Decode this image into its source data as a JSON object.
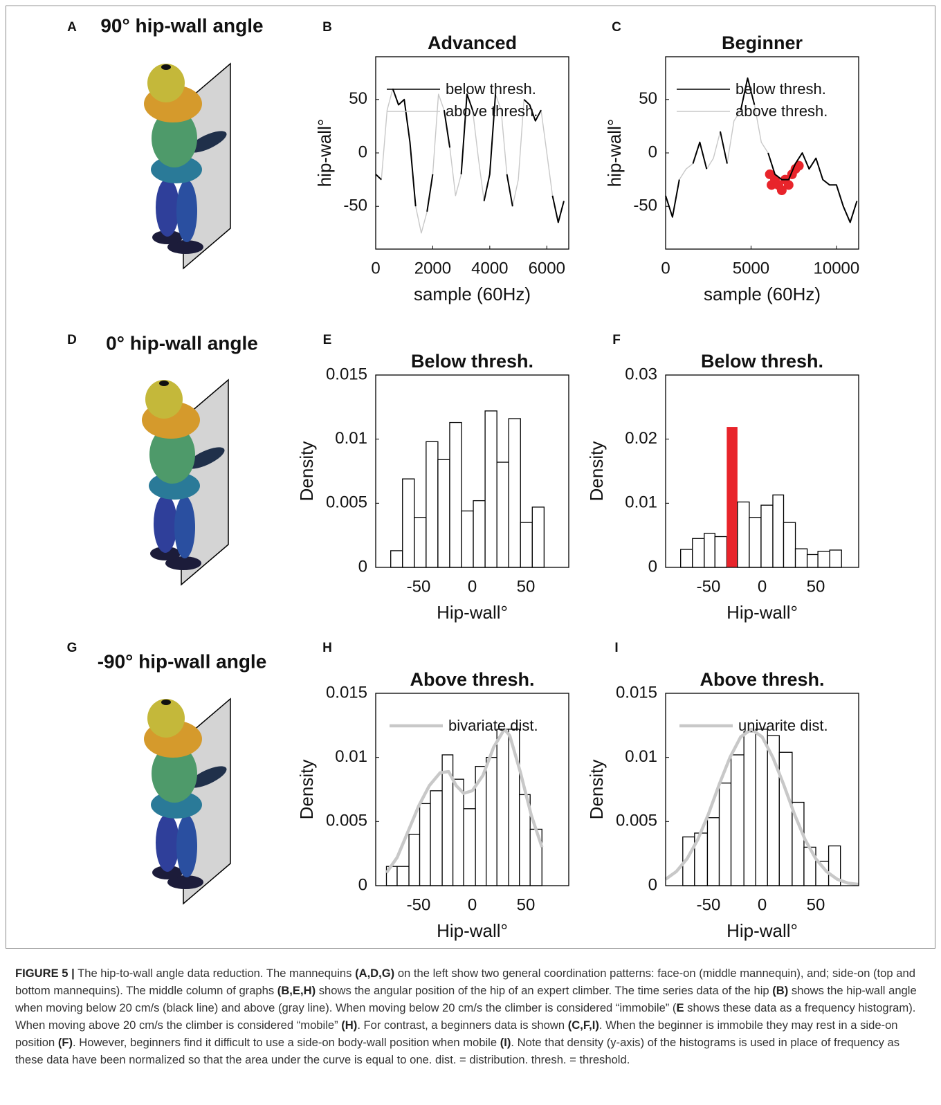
{
  "panel_labels": [
    "A",
    "B",
    "C",
    "D",
    "E",
    "F",
    "G",
    "H",
    "I"
  ],
  "mannequin_titles": [
    "90° hip-wall angle",
    "0° hip-wall angle",
    "-90° hip-wall angle"
  ],
  "chart_data": [
    {
      "type": "line",
      "title": "Advanced",
      "xlabel": "sample (60Hz)",
      "ylabel": "hip-wall°",
      "xlim": [
        0,
        6770
      ],
      "ylim": [
        -90,
        90
      ],
      "xticks": [
        0,
        2000,
        4000,
        6000
      ],
      "yticks": [
        -50,
        0,
        50
      ],
      "legend": "upper left",
      "series": [
        {
          "name": "below thresh.",
          "color": "#000000",
          "x": [
            0,
            200,
            400,
            600,
            800,
            1000,
            1200,
            1400,
            1600,
            1800,
            2000,
            2200,
            2400,
            2600,
            2800,
            3000,
            3200,
            3400,
            3600,
            3800,
            4000,
            4200,
            4400,
            4600,
            4800,
            5000,
            5200,
            5400,
            5600,
            5800,
            6000,
            6200,
            6400,
            6600
          ],
          "values": [
            -20,
            -25,
            null,
            60,
            45,
            50,
            10,
            -50,
            null,
            -55,
            -20,
            null,
            40,
            5,
            null,
            -20,
            55,
            40,
            null,
            -45,
            -20,
            55,
            null,
            -20,
            -50,
            null,
            50,
            45,
            30,
            40,
            null,
            -40,
            -65,
            -45
          ]
        },
        {
          "name": "above thresh.",
          "color": "#c8c8c8",
          "x": [
            0,
            200,
            400,
            600,
            800,
            1000,
            1200,
            1400,
            1600,
            1800,
            2000,
            2200,
            2400,
            2600,
            2800,
            3000,
            3200,
            3400,
            3600,
            3800,
            4000,
            4200,
            4400,
            4600,
            4800,
            5000,
            5200,
            5400,
            5600,
            5800,
            6000,
            6200,
            6400,
            6600
          ],
          "values": [
            -20,
            -25,
            40,
            60,
            45,
            50,
            10,
            -50,
            -75,
            -55,
            -20,
            55,
            40,
            5,
            -40,
            -20,
            55,
            40,
            -5,
            -45,
            -20,
            55,
            40,
            -20,
            -50,
            -25,
            50,
            45,
            30,
            40,
            0,
            -40,
            -65,
            -45
          ]
        }
      ]
    },
    {
      "type": "line",
      "title": "Beginner",
      "xlabel": "sample (60Hz)",
      "ylabel": "hip-wall°",
      "xlim": [
        0,
        11300
      ],
      "ylim": [
        -90,
        90
      ],
      "xticks": [
        0,
        5000,
        10000
      ],
      "yticks": [
        -50,
        0,
        50
      ],
      "legend": "upper left",
      "series": [
        {
          "name": "below thresh.",
          "color": "#000000",
          "x": [
            0,
            400,
            800,
            1200,
            1600,
            2000,
            2400,
            2800,
            3200,
            3600,
            4000,
            4400,
            4800,
            5200,
            5600,
            6000,
            6400,
            6800,
            7200,
            7600,
            8000,
            8400,
            8800,
            9200,
            9600,
            10000,
            10400,
            10800,
            11200
          ],
          "values": [
            -40,
            -60,
            -25,
            null,
            -10,
            10,
            -15,
            null,
            20,
            -10,
            null,
            40,
            70,
            45,
            null,
            0,
            -20,
            -25,
            -25,
            -10,
            0,
            -15,
            -5,
            -25,
            -30,
            -30,
            -50,
            -65,
            -45
          ]
        },
        {
          "name": "above thresh.",
          "color": "#c8c8c8",
          "x": [
            0,
            400,
            800,
            1200,
            1600,
            2000,
            2400,
            2800,
            3200,
            3600,
            4000,
            4400,
            4800,
            5200,
            5600,
            6000,
            6400,
            6800,
            7200,
            7600,
            8000,
            8400,
            8800,
            9200,
            9600,
            10000,
            10400,
            10800,
            11200
          ],
          "values": [
            -40,
            -60,
            -25,
            -15,
            -10,
            10,
            -15,
            -5,
            20,
            -10,
            30,
            40,
            70,
            45,
            10,
            0,
            -20,
            -25,
            -25,
            -10,
            0,
            -15,
            -5,
            -25,
            -30,
            -30,
            -50,
            -65,
            -45
          ]
        },
        {
          "type": "scatter",
          "color": "#e8242b",
          "x": [
            6100,
            6200,
            6400,
            6600,
            6800,
            7000,
            7200,
            7400,
            7600,
            7800
          ],
          "values": [
            -20,
            -30,
            -25,
            -30,
            -35,
            -25,
            -30,
            -20,
            -15,
            -12
          ]
        }
      ]
    },
    {
      "type": "histogram",
      "title": "Below thresh.",
      "xlabel": "Hip-wall°",
      "ylabel": "Density",
      "xlim": [
        -90,
        90
      ],
      "ylim": [
        0,
        0.015
      ],
      "xticks": [
        -50,
        0,
        50
      ],
      "yticks": [
        0,
        0.005,
        0.01,
        0.015
      ],
      "color": "#ffffff",
      "bins": [
        -76,
        -65,
        -54,
        -43,
        -32,
        -21,
        -10,
        1,
        12,
        23,
        34,
        45,
        56,
        67
      ],
      "values": [
        0.0013,
        0.0069,
        0.0039,
        0.0098,
        0.0084,
        0.0113,
        0.0044,
        0.0052,
        0.0122,
        0.0082,
        0.0116,
        0.0035,
        0.0047
      ]
    },
    {
      "type": "histogram",
      "title": "Below thresh.",
      "xlabel": "Hip-wall°",
      "ylabel": "Density",
      "xlim": [
        -90,
        90
      ],
      "ylim": [
        0,
        0.03
      ],
      "xticks": [
        -50,
        0,
        50
      ],
      "yticks": [
        0,
        0.01,
        0.02,
        0.03
      ],
      "bar_colors": [
        "#ffffff",
        "#ffffff",
        "#ffffff",
        "#ffffff",
        "#e8242b",
        "#ffffff",
        "#ffffff",
        "#ffffff",
        "#ffffff",
        "#ffffff",
        "#ffffff",
        "#ffffff",
        "#ffffff",
        "#ffffff"
      ],
      "bins": [
        -76,
        -65,
        -54,
        -44,
        -33,
        -23,
        -12,
        -1,
        10,
        20,
        31,
        42,
        52,
        63,
        74
      ],
      "values": [
        0.0028,
        0.0045,
        0.0053,
        0.0048,
        0.0219,
        0.0102,
        0.0078,
        0.0097,
        0.0113,
        0.007,
        0.0029,
        0.002,
        0.0025,
        0.0027
      ]
    },
    {
      "type": "histogram",
      "title": "Above thresh.",
      "xlabel": "Hip-wall°",
      "ylabel": "Density",
      "xlim": [
        -90,
        90
      ],
      "ylim": [
        0,
        0.015
      ],
      "xticks": [
        -50,
        0,
        50
      ],
      "yticks": [
        0,
        0.005,
        0.01,
        0.015
      ],
      "color": "#ffffff",
      "legend": "upper left",
      "bins": [
        -80,
        -70,
        -59,
        -49,
        -39,
        -28,
        -18,
        -8,
        3,
        13,
        23,
        34,
        44,
        54,
        65
      ],
      "values": [
        0.0015,
        0.0015,
        0.004,
        0.0064,
        0.0074,
        0.0102,
        0.0083,
        0.006,
        0.0093,
        0.01,
        0.0122,
        0.0122,
        0.0071,
        0.0044
      ],
      "curve": {
        "name": "bivariate dist.",
        "color": "#c8c8c8",
        "x": [
          -80,
          -70,
          -60,
          -50,
          -40,
          -30,
          -22,
          -15,
          -8,
          0,
          10,
          20,
          30,
          35,
          45,
          55,
          65
        ],
        "values": [
          0.001,
          0.0022,
          0.0042,
          0.0062,
          0.0078,
          0.0088,
          0.0089,
          0.0078,
          0.0072,
          0.0074,
          0.0086,
          0.0108,
          0.0122,
          0.0117,
          0.0088,
          0.0055,
          0.003
        ]
      }
    },
    {
      "type": "histogram",
      "title": "Above thresh.",
      "xlabel": "Hip-wall°",
      "ylabel": "Density",
      "xlim": [
        -90,
        90
      ],
      "ylim": [
        0,
        0.015
      ],
      "xticks": [
        -50,
        0,
        50
      ],
      "yticks": [
        0,
        0.005,
        0.01,
        0.015
      ],
      "color": "#ffffff",
      "legend": "upper left",
      "bins": [
        -74,
        -63,
        -51,
        -40,
        -29,
        -17,
        -6,
        5,
        16,
        28,
        39,
        50,
        62,
        73
      ],
      "values": [
        0.0038,
        0.0041,
        0.0053,
        0.008,
        0.0102,
        0.012,
        0.0122,
        0.0117,
        0.0104,
        0.0065,
        0.003,
        0.0019,
        0.0031
      ],
      "curve": {
        "name": "univarite dist.",
        "color": "#c8c8c8",
        "x": [
          -90,
          -80,
          -70,
          -60,
          -50,
          -40,
          -30,
          -20,
          -10,
          0,
          10,
          20,
          30,
          40,
          50,
          60,
          70,
          80,
          90
        ],
        "values": [
          0.0005,
          0.0011,
          0.0021,
          0.0036,
          0.0056,
          0.0079,
          0.01,
          0.0116,
          0.0122,
          0.0116,
          0.01,
          0.0079,
          0.0056,
          0.0036,
          0.0021,
          0.0011,
          0.0005,
          0.0002,
          0.0001
        ]
      }
    }
  ],
  "caption": [
    {
      "text": "FIGURE 5 |",
      "bold": true
    },
    {
      "text": " The hip-to-wall angle data reduction. The mannequins "
    },
    {
      "text": "(A,D,G)",
      "bold": true
    },
    {
      "text": " on the left show two general coordination patterns: face-on (middle mannequin), and; side-on (top and bottom mannequins). The middle column of graphs "
    },
    {
      "text": "(B,E,H)",
      "bold": true
    },
    {
      "text": " shows the angular position of the hip of an expert climber. The time series data of the hip "
    },
    {
      "text": "(B)",
      "bold": true
    },
    {
      "text": " shows the hip-wall angle when moving below 20 cm/s (black line) and above (gray line). When moving below 20 cm/s the climber is considered “immobile” ("
    },
    {
      "text": "E",
      "bold": true
    },
    {
      "text": " shows these data as a frequency histogram). When moving above 20 cm/s the climber is considered “mobile” "
    },
    {
      "text": "(H)",
      "bold": true
    },
    {
      "text": ". For contrast, a beginners data is shown "
    },
    {
      "text": "(C,F,I)",
      "bold": true
    },
    {
      "text": ". When the beginner is immobile they may rest in a side-on position "
    },
    {
      "text": "(F)",
      "bold": true
    },
    {
      "text": ". However, beginners find it difficult to use a side-on body-wall position when mobile "
    },
    {
      "text": "(I)",
      "bold": true
    },
    {
      "text": ". Note that density (y-axis) of the histograms is used in place of frequency as these data have been normalized so that the area under the curve is equal to one. dist. = distribution. thresh. = threshold."
    }
  ]
}
